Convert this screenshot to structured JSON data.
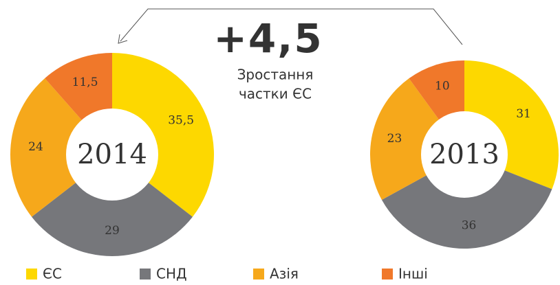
{
  "chart_data": [
    {
      "type": "pie",
      "title": "2014",
      "categories": [
        "ЄС",
        "СНД",
        "Азія",
        "Інші"
      ],
      "values": [
        35.5,
        29,
        24,
        11.5
      ],
      "value_labels": [
        "35,5",
        "29",
        "24",
        "11,5"
      ],
      "colors": [
        "#fdd800",
        "#76777b",
        "#f6a81b",
        "#f0782a"
      ]
    },
    {
      "type": "pie",
      "title": "2013",
      "categories": [
        "ЄС",
        "СНД",
        "Азія",
        "Інші"
      ],
      "values": [
        31,
        36,
        23,
        10
      ],
      "colors": [
        "#fdd800",
        "#76777b",
        "#f6a81b",
        "#f0782a"
      ]
    }
  ],
  "annotation": {
    "value": "+4,5",
    "text": [
      "Зростання",
      "частки ЄС"
    ]
  }
}
